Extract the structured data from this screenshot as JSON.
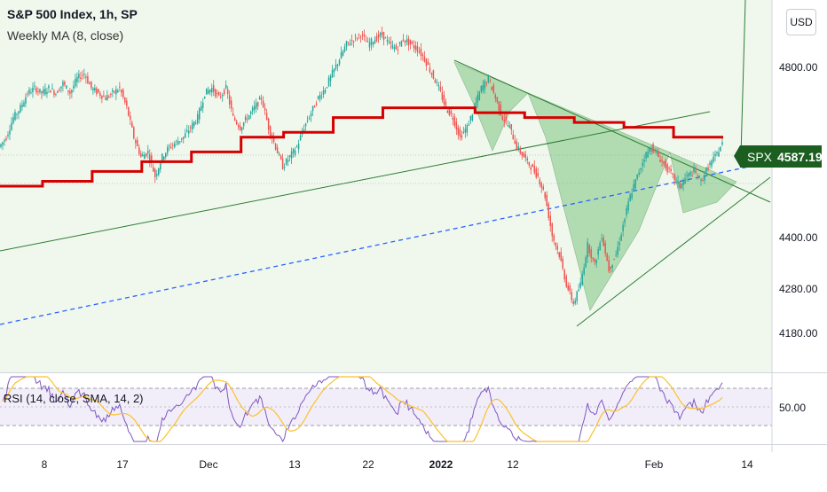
{
  "chart": {
    "title": "S&P 500 Index, 1h, SP",
    "indicator": "Weekly MA (8, close)",
    "currency_button": "USD",
    "price_tag": {
      "symbol": "SPX",
      "value": "4587.19"
    },
    "y_axis_ticks": [
      "4800.00",
      "4400.00",
      "4280.00",
      "4180.00"
    ],
    "rsi_legend": "RSI (14, close, SMA, 14, 2)",
    "rsi_axis_tick": "50.00",
    "x_axis_ticks": [
      "8",
      "17",
      "Dec",
      "13",
      "22",
      "2022",
      "12",
      "Feb",
      "14"
    ],
    "colors": {
      "background": "#f0f8ee",
      "up_candle": "#26a69a",
      "down_candle": "#ef5350",
      "weekly_ma": "#d50000",
      "trendline": "#2e7d32",
      "dashed_line": "#2962ff",
      "pattern_fill": "#66bb6a",
      "rsi_line": "#7e57c2",
      "rsi_ma": "#fbc02d",
      "rsi_band": "#ede7f6"
    }
  },
  "chart_data": {
    "type": "candlestick",
    "symbol": "SPX",
    "timeframe": "1h",
    "last_price": 4587.19,
    "ylim": [
      4120,
      4880
    ],
    "price_path": [
      [
        0,
        4580
      ],
      [
        1,
        4600
      ],
      [
        2,
        4640
      ],
      [
        3,
        4660
      ],
      [
        4,
        4690
      ],
      [
        5,
        4700
      ],
      [
        6,
        4690
      ],
      [
        7,
        4700
      ],
      [
        8,
        4690
      ],
      [
        9,
        4710
      ],
      [
        10,
        4690
      ],
      [
        11,
        4720
      ],
      [
        12,
        4730
      ],
      [
        13,
        4700
      ],
      [
        14,
        4690
      ],
      [
        15,
        4680
      ],
      [
        16,
        4690
      ],
      [
        17,
        4700
      ],
      [
        18,
        4660
      ],
      [
        19,
        4600
      ],
      [
        20,
        4560
      ],
      [
        21,
        4570
      ],
      [
        22,
        4520
      ],
      [
        23,
        4560
      ],
      [
        24,
        4580
      ],
      [
        25,
        4590
      ],
      [
        26,
        4600
      ],
      [
        27,
        4620
      ],
      [
        28,
        4640
      ],
      [
        29,
        4690
      ],
      [
        30,
        4700
      ],
      [
        31,
        4680
      ],
      [
        32,
        4700
      ],
      [
        33,
        4640
      ],
      [
        34,
        4620
      ],
      [
        35,
        4640
      ],
      [
        36,
        4660
      ],
      [
        37,
        4680
      ],
      [
        38,
        4620
      ],
      [
        39,
        4580
      ],
      [
        40,
        4540
      ],
      [
        41,
        4560
      ],
      [
        42,
        4580
      ],
      [
        43,
        4620
      ],
      [
        44,
        4650
      ],
      [
        45,
        4680
      ],
      [
        46,
        4700
      ],
      [
        47,
        4730
      ],
      [
        48,
        4760
      ],
      [
        49,
        4790
      ],
      [
        50,
        4800
      ],
      [
        51,
        4810
      ],
      [
        52,
        4790
      ],
      [
        53,
        4800
      ],
      [
        54,
        4810
      ],
      [
        55,
        4790
      ],
      [
        56,
        4780
      ],
      [
        57,
        4800
      ],
      [
        58,
        4790
      ],
      [
        59,
        4780
      ],
      [
        60,
        4760
      ],
      [
        61,
        4730
      ],
      [
        62,
        4700
      ],
      [
        63,
        4660
      ],
      [
        64,
        4640
      ],
      [
        65,
        4600
      ],
      [
        66,
        4620
      ],
      [
        67,
        4660
      ],
      [
        68,
        4700
      ],
      [
        69,
        4720
      ],
      [
        70,
        4680
      ],
      [
        71,
        4640
      ],
      [
        72,
        4620
      ],
      [
        73,
        4580
      ],
      [
        74,
        4560
      ],
      [
        75,
        4540
      ],
      [
        76,
        4520
      ],
      [
        77,
        4480
      ],
      [
        78,
        4400
      ],
      [
        79,
        4360
      ],
      [
        80,
        4300
      ],
      [
        81,
        4260
      ],
      [
        82,
        4300
      ],
      [
        83,
        4380
      ],
      [
        84,
        4340
      ],
      [
        85,
        4400
      ],
      [
        86,
        4330
      ],
      [
        87,
        4360
      ],
      [
        88,
        4420
      ],
      [
        89,
        4480
      ],
      [
        90,
        4520
      ],
      [
        91,
        4560
      ],
      [
        92,
        4580
      ],
      [
        93,
        4560
      ],
      [
        94,
        4540
      ],
      [
        95,
        4520
      ],
      [
        96,
        4500
      ],
      [
        97,
        4520
      ],
      [
        98,
        4530
      ],
      [
        99,
        4510
      ],
      [
        100,
        4540
      ],
      [
        101,
        4560
      ],
      [
        102,
        4587.19
      ]
    ],
    "weekly_ma_steps": [
      [
        0,
        4500
      ],
      [
        6,
        4510
      ],
      [
        13,
        4530
      ],
      [
        20,
        4550
      ],
      [
        27,
        4570
      ],
      [
        34,
        4600
      ],
      [
        40,
        4610
      ],
      [
        47,
        4640
      ],
      [
        54,
        4660
      ],
      [
        60,
        4660
      ],
      [
        67,
        4650
      ],
      [
        74,
        4640
      ],
      [
        81,
        4630
      ],
      [
        88,
        4620
      ],
      [
        95,
        4600
      ],
      [
        102,
        4600
      ]
    ],
    "rsi_axis_value": 50,
    "rsi_ylim": [
      20,
      80
    ]
  }
}
